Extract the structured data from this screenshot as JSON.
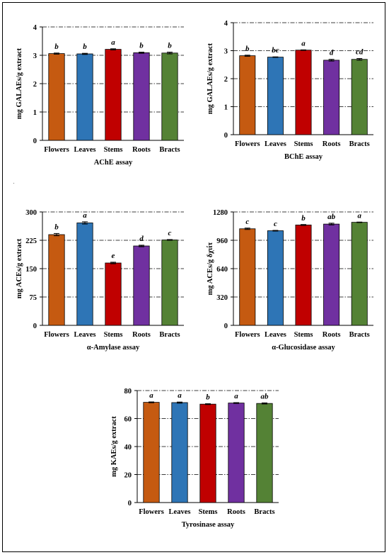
{
  "colors": {
    "Flowers": "#c55a11",
    "Leaves": "#2e75b6",
    "Stems": "#c00000",
    "Roots": "#7030a0",
    "Bracts": "#548235",
    "grid": "#000000",
    "axis": "#000000"
  },
  "chart_data": [
    {
      "id": "ache",
      "type": "bar",
      "title": "AChE assay",
      "ylabel": "mg GALAEs/g extract",
      "categories": [
        "Flowers",
        "Leaves",
        "Stems",
        "Roots",
        "Bracts"
      ],
      "values": [
        3.06,
        3.05,
        3.21,
        3.09,
        3.08
      ],
      "errors": [
        0.02,
        0.02,
        0.02,
        0.02,
        0.03
      ],
      "letters": [
        "b",
        "b",
        "a",
        "b",
        "b"
      ],
      "ylim": [
        0,
        4
      ],
      "yticks": [
        0,
        1,
        2,
        3,
        4
      ],
      "grid": true
    },
    {
      "id": "bche",
      "type": "bar",
      "title": "BChE assay",
      "ylabel": "mg GALAEs/g extract",
      "categories": [
        "Flowers",
        "Leaves",
        "Stems",
        "Roots",
        "Bracts"
      ],
      "values": [
        2.82,
        2.77,
        3.02,
        2.66,
        2.69
      ],
      "errors": [
        0.02,
        0.01,
        0.01,
        0.03,
        0.03
      ],
      "letters": [
        "b",
        "bc",
        "a",
        "d",
        "cd"
      ],
      "ylim": [
        0,
        4
      ],
      "yticks": [
        0,
        1,
        2,
        3,
        4
      ],
      "grid": true
    },
    {
      "id": "amylase",
      "type": "bar",
      "title": "α-Amylase assay",
      "ylabel": "mg ACEs/g extract",
      "categories": [
        "Flowers",
        "Leaves",
        "Stems",
        "Roots",
        "Bracts"
      ],
      "values": [
        240,
        271,
        165,
        210,
        226
      ],
      "errors": [
        3,
        3,
        2,
        2,
        1
      ],
      "letters": [
        "b",
        "a",
        "e",
        "d",
        "c"
      ],
      "ylim": [
        0,
        300
      ],
      "yticks": [
        0,
        75,
        150,
        225,
        300
      ],
      "grid": true
    },
    {
      "id": "glucosidase",
      "type": "bar",
      "title": "α-Glucosidase assay",
      "ylabel": "mg ACEs/g δχιίτ",
      "categories": [
        "Flowers",
        "Leaves",
        "Stems",
        "Roots",
        "Bracts"
      ],
      "values": [
        1090,
        1068,
        1133,
        1143,
        1163
      ],
      "errors": [
        8,
        4,
        5,
        10,
        3
      ],
      "letters": [
        "c",
        "c",
        "b",
        "ab",
        "a"
      ],
      "ylim": [
        0,
        1280
      ],
      "yticks": [
        0,
        320,
        640,
        960,
        1280
      ],
      "grid": true
    },
    {
      "id": "tyrosinase",
      "type": "bar",
      "title": "Tyrosinase assay",
      "ylabel": "mg KAEs/g extract",
      "categories": [
        "Flowers",
        "Leaves",
        "Stems",
        "Roots",
        "Bracts"
      ],
      "values": [
        71.6,
        71.4,
        70.3,
        71.1,
        70.8
      ],
      "errors": [
        0.3,
        0.4,
        0.3,
        0.3,
        0.4
      ],
      "letters": [
        "a",
        "a",
        "b",
        "a",
        "ab"
      ],
      "ylim": [
        0,
        80
      ],
      "yticks": [
        0,
        20,
        40,
        60,
        80
      ],
      "grid": true
    }
  ]
}
